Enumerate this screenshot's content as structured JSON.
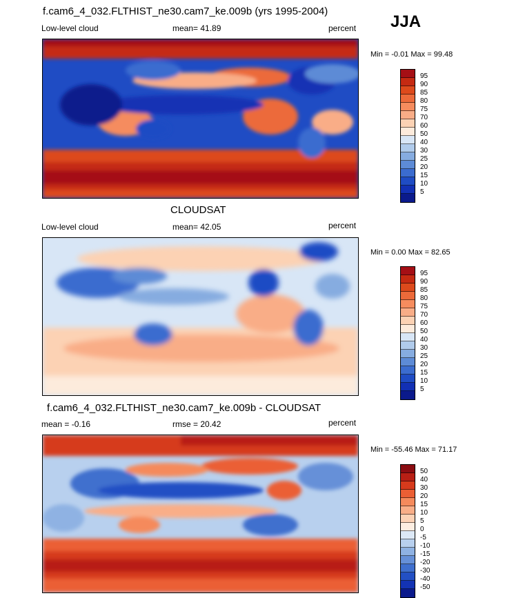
{
  "season": "JJA",
  "panels": [
    {
      "title": "f.cam6_4_032.FLTHIST_ne30.cam7_ke.009b (yrs 1995-2004)",
      "left_label": "Low-level cloud",
      "center_label": "mean=  41.89",
      "right_label": "percent",
      "stats": "Min =  -0.01 Max =  99.48",
      "levels": [
        "95",
        "90",
        "85",
        "80",
        "75",
        "70",
        "60",
        "50",
        "40",
        "30",
        "25",
        "20",
        "15",
        "10",
        "5"
      ],
      "colors": [
        "#a50f15",
        "#c52a12",
        "#dd4a1c",
        "#ec6a3a",
        "#f58c5e",
        "#f9ad87",
        "#fcd2b4",
        "#fdebdc",
        "#d8e6f6",
        "#b0cbeb",
        "#86ace0",
        "#5d8bd6",
        "#3b6ccf",
        "#1f4cc4",
        "#1230b4",
        "#0b1a8c"
      ]
    },
    {
      "title": "CLOUDSAT",
      "left_label": "Low-level cloud",
      "center_label": "mean=  42.05",
      "right_label": "percent",
      "stats": "Min =   0.00 Max =  82.65",
      "levels": [
        "95",
        "90",
        "85",
        "80",
        "75",
        "70",
        "60",
        "50",
        "40",
        "30",
        "25",
        "20",
        "15",
        "10",
        "5"
      ],
      "colors": [
        "#a50f15",
        "#c52a12",
        "#dd4a1c",
        "#ec6a3a",
        "#f58c5e",
        "#f9ad87",
        "#fcd2b4",
        "#fdebdc",
        "#d8e6f6",
        "#b0cbeb",
        "#86ace0",
        "#5d8bd6",
        "#3b6ccf",
        "#1f4cc4",
        "#1230b4",
        "#0b1a8c"
      ]
    },
    {
      "title": "f.cam6_4_032.FLTHIST_ne30.cam7_ke.009b - CLOUDSAT",
      "left_label": "mean =  -0.16",
      "center_label": "rmse =  20.42",
      "right_label": "percent",
      "stats": "Min = -55.46 Max =  71.17",
      "levels": [
        "50",
        "40",
        "30",
        "20",
        "15",
        "10",
        "5",
        "0",
        "-5",
        "-10",
        "-15",
        "-20",
        "-30",
        "-40",
        "-50"
      ],
      "colors": [
        "#8b0d12",
        "#b81f15",
        "#d63a1c",
        "#eb5f34",
        "#f58a5c",
        "#f9ae88",
        "#fcd2b6",
        "#fdeee2",
        "#dde9f7",
        "#b8d0ee",
        "#8fb2e3",
        "#6690d8",
        "#3f6fce",
        "#2350c4",
        "#1333b4",
        "#0b1a8c"
      ]
    }
  ]
}
